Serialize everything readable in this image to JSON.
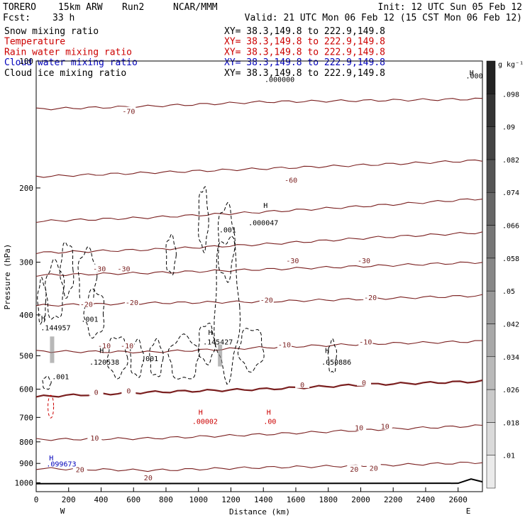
{
  "header": {
    "model": "TORERO",
    "grid": "15km ARW",
    "run": "Run2",
    "center": "NCAR/MMM",
    "init": "Init: 12 UTC Sun 05 Feb 12",
    "fcst_label": "Fcst:",
    "fcst_value": "33 h",
    "valid": "Valid: 21 UTC Mon 06 Feb 12 (15 CST Mon 06 Feb 12)"
  },
  "fields": [
    {
      "name": "Snow mixing ratio",
      "xy": "XY=  38.3,149.8 to 222.9,149.8",
      "color": "#000000"
    },
    {
      "name": "Temperature",
      "xy": "XY=  38.3,149.8 to 222.9,149.8",
      "color": "#cc0000"
    },
    {
      "name": "Rain water mixing ratio",
      "xy": "XY=  38.3,149.8 to 222.9,149.8",
      "color": "#cc0000"
    },
    {
      "name": "Cloud water mixing ratio",
      "xy": "XY=  38.3,149.8 to 222.9,149.8",
      "color": "#0000bb"
    },
    {
      "name": "Cloud ice mixing ratio",
      "xy": "XY=  38.3,149.8 to 222.9,149.8",
      "color": "#000000"
    }
  ],
  "colorbar": {
    "unit": "g kg⁻¹",
    "labels": [
      ".01",
      ".018",
      ".026",
      ".034",
      ".042",
      ".05",
      ".058",
      ".066",
      ".074",
      ".082",
      ".09",
      ".098"
    ]
  },
  "chart_data": {
    "type": "line",
    "xlabel": "Distance (km)",
    "ylabel": "Pressure (hPa)",
    "xlim": [
      0,
      2750
    ],
    "ylim": [
      1050,
      100
    ],
    "y_scale": "log",
    "xticks": [
      0,
      200,
      400,
      600,
      800,
      1000,
      1200,
      1400,
      1600,
      1800,
      2000,
      2200,
      2400,
      2600
    ],
    "yticks": [
      100,
      200,
      300,
      400,
      500,
      600,
      700,
      800,
      900,
      1000
    ],
    "end_labels": {
      "left": "W",
      "right": "E"
    },
    "temperature_isotherms": [
      {
        "label": "-70",
        "p": [
          130,
          128,
          125,
          124,
          123
        ]
      },
      {
        "label": "-60",
        "p": [
          188,
          184,
          180,
          176,
          172
        ]
      },
      {
        "label": "-50",
        "p": [
          240,
          235,
          228,
          220,
          212
        ]
      },
      {
        "label": "-40",
        "p": [
          285,
          280,
          272,
          262,
          255
        ]
      },
      {
        "label": "-30",
        "p": [
          322,
          318,
          312,
          306,
          300
        ]
      },
      {
        "label": "-20",
        "p": [
          380,
          375,
          372,
          366,
          360
        ]
      },
      {
        "label": "-10",
        "p": [
          488,
          490,
          478,
          468,
          462
        ]
      },
      {
        "label": "0",
        "p": [
          625,
          610,
          600,
          584,
          575
        ]
      },
      {
        "label": "10",
        "p": [
          790,
          785,
          768,
          748,
          732
        ]
      },
      {
        "label": "20",
        "p": [
          925,
          935,
          920,
          910,
          895
        ]
      }
    ],
    "isotherm_x": [
      0,
      700,
      1400,
      2100,
      2750
    ],
    "contour_labels": [
      {
        "x": 570,
        "p": 132,
        "text": "-70"
      },
      {
        "x": 1570,
        "p": 192,
        "text": "-60"
      },
      {
        "x": 1580,
        "p": 298,
        "text": "-30"
      },
      {
        "x": 2020,
        "p": 298,
        "text": "-30"
      },
      {
        "x": 390,
        "p": 312,
        "text": "-30"
      },
      {
        "x": 540,
        "p": 312,
        "text": "-30"
      },
      {
        "x": 310,
        "p": 378,
        "text": "-20"
      },
      {
        "x": 590,
        "p": 375,
        "text": "-20"
      },
      {
        "x": 1420,
        "p": 370,
        "text": "-20"
      },
      {
        "x": 2060,
        "p": 365,
        "text": "-20"
      },
      {
        "x": 420,
        "p": 475,
        "text": "-10"
      },
      {
        "x": 560,
        "p": 475,
        "text": "-10"
      },
      {
        "x": 1530,
        "p": 472,
        "text": "-10"
      },
      {
        "x": 2030,
        "p": 465,
        "text": "-10"
      },
      {
        "x": 370,
        "p": 612,
        "text": "0"
      },
      {
        "x": 570,
        "p": 607,
        "text": "0"
      },
      {
        "x": 1640,
        "p": 587,
        "text": "0"
      },
      {
        "x": 2020,
        "p": 580,
        "text": "0"
      },
      {
        "x": 1990,
        "p": 742,
        "text": "10"
      },
      {
        "x": 2150,
        "p": 737,
        "text": "10"
      },
      {
        "x": 360,
        "p": 785,
        "text": "10"
      },
      {
        "x": 270,
        "p": 933,
        "text": "20"
      },
      {
        "x": 690,
        "p": 975,
        "text": "20"
      },
      {
        "x": 1960,
        "p": 932,
        "text": "20"
      },
      {
        "x": 2080,
        "p": 925,
        "text": "20"
      }
    ],
    "max_labels": [
      {
        "x": 2700,
        "p": 110,
        "text": ".000",
        "color": "#000000"
      },
      {
        "x": 1500,
        "p": 112,
        "text": ".000000",
        "color": "#000000"
      },
      {
        "x": 1400,
        "p": 245,
        "text": ".000047",
        "color": "#000000"
      },
      {
        "x": 1180,
        "p": 255,
        "text": ".001",
        "color": "#000000"
      },
      {
        "x": 120,
        "p": 435,
        "text": ".144957",
        "color": "#000000"
      },
      {
        "x": 1120,
        "p": 470,
        "text": ".145427",
        "color": "#000000"
      },
      {
        "x": 420,
        "p": 525,
        "text": ".120538",
        "color": "#000000"
      },
      {
        "x": 700,
        "p": 515,
        "text": ".001",
        "color": "#000000"
      },
      {
        "x": 1850,
        "p": 525,
        "text": ".050886",
        "color": "#000000"
      },
      {
        "x": 150,
        "p": 568,
        "text": ".001",
        "color": "#000000"
      },
      {
        "x": 330,
        "p": 415,
        "text": ".001",
        "color": "#000000"
      },
      {
        "x": 1040,
        "p": 725,
        "text": ".00002",
        "color": "#cc0000"
      },
      {
        "x": 1440,
        "p": 725,
        "text": ".00",
        "color": "#cc0000"
      },
      {
        "x": 155,
        "p": 915,
        "text": ".099673",
        "color": "#0000bb"
      }
    ],
    "h_markers": [
      {
        "x": 2670,
        "p": 108,
        "color": "#000000"
      },
      {
        "x": 1400,
        "p": 223,
        "color": "#000000"
      },
      {
        "x": 30,
        "p": 413,
        "color": "#000000"
      },
      {
        "x": 1060,
        "p": 446,
        "color": "#000000"
      },
      {
        "x": 390,
        "p": 492,
        "color": "#000000"
      },
      {
        "x": 1780,
        "p": 492,
        "color": "#000000"
      },
      {
        "x": 1000,
        "p": 690,
        "color": "#cc0000"
      },
      {
        "x": 1420,
        "p": 690,
        "color": "#cc0000"
      },
      {
        "x": 80,
        "p": 885,
        "color": "#0000bb"
      }
    ]
  }
}
